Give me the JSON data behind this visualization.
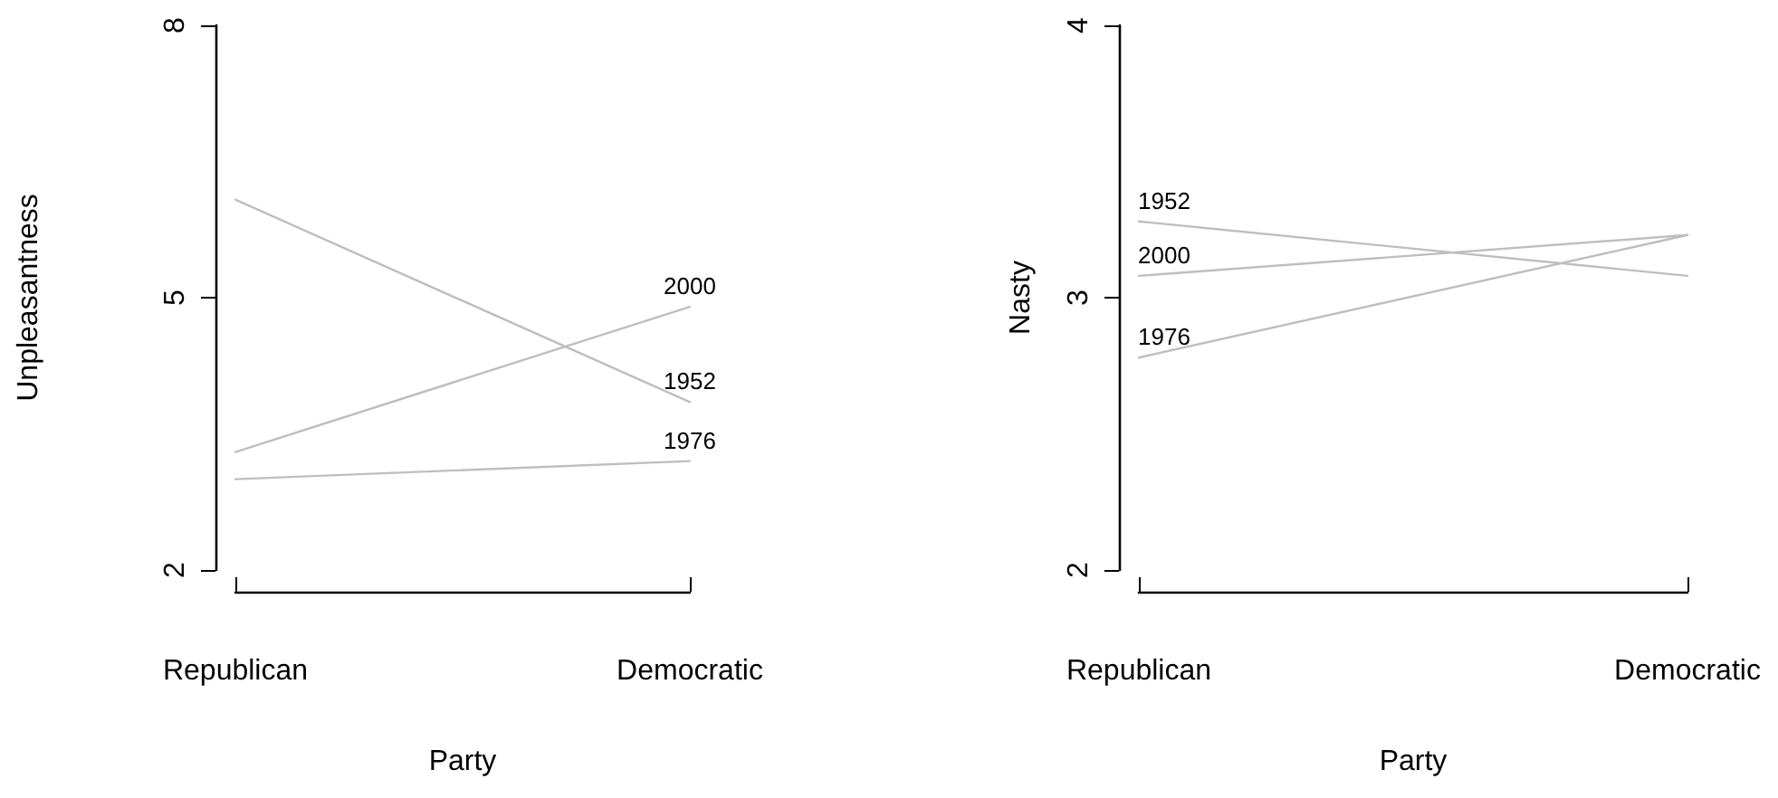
{
  "chart_data": [
    {
      "type": "line",
      "categories": [
        "Republican",
        "Democratic"
      ],
      "xlabel": "Party",
      "ylabel": "Unpleasantness",
      "ylim": [
        2,
        8
      ],
      "yticks": [
        2,
        5,
        8
      ],
      "grid": false,
      "legend": false,
      "marker": "none",
      "line_style": "solid",
      "series": [
        {
          "name": "1952",
          "color": "#bebebe",
          "values": [
            6.08,
            3.85
          ]
        },
        {
          "name": "2000",
          "color": "#bebebe",
          "values": [
            3.3,
            4.9
          ]
        },
        {
          "name": "1976",
          "color": "#bebebe",
          "values": [
            3.0,
            3.2
          ]
        }
      ]
    },
    {
      "type": "line",
      "categories": [
        "Republican",
        "Democratic"
      ],
      "xlabel": "Party",
      "ylabel": "Nasty",
      "ylim": [
        2,
        4
      ],
      "yticks": [
        2,
        3,
        4
      ],
      "grid": false,
      "legend": false,
      "marker": "none",
      "line_style": "solid",
      "series": [
        {
          "name": "1952",
          "color": "#bebebe",
          "values": [
            3.28,
            3.08
          ]
        },
        {
          "name": "2000",
          "color": "#bebebe",
          "values": [
            3.08,
            3.23
          ]
        },
        {
          "name": "1976",
          "color": "#bebebe",
          "values": [
            2.78,
            3.23
          ]
        }
      ]
    }
  ]
}
